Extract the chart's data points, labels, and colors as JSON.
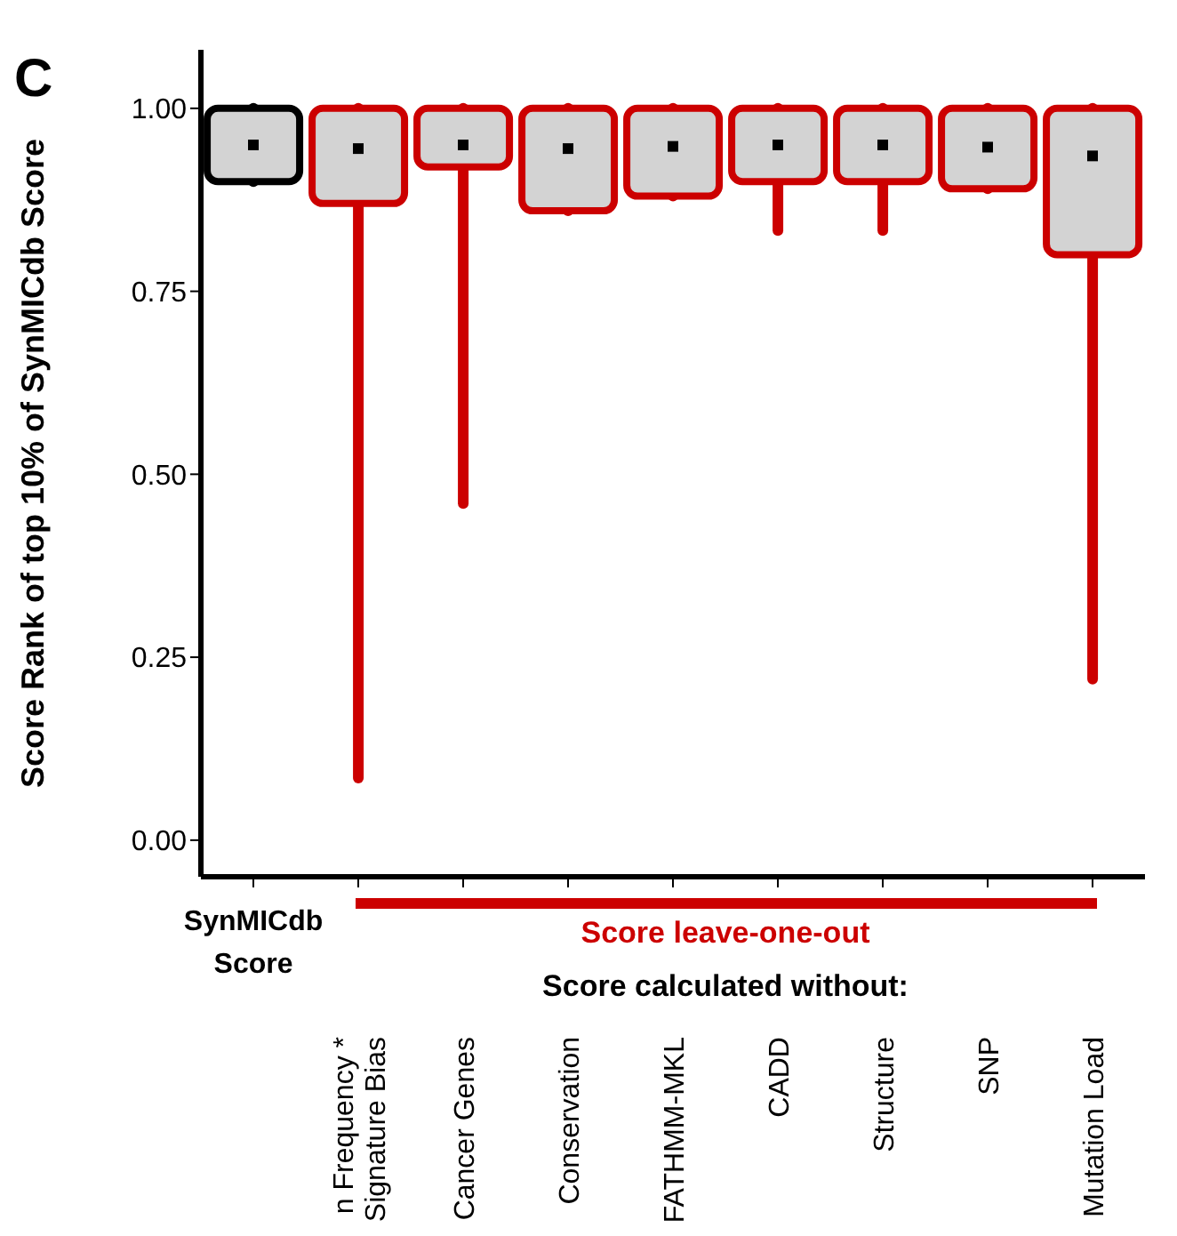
{
  "chart_data": {
    "type": "box",
    "ylabel": "Score Rank of top 10% of SynMICdb Score",
    "categories": [
      "SynMICdb\nScore",
      "n Frequency *\nSignature Bias",
      "Cancer Genes",
      "Conservation",
      "FATHMM-MKL",
      "CADD",
      "Structure",
      "SNP",
      "Mutation Load"
    ],
    "colors": [
      "#000000",
      "#cc0000",
      "#cc0000",
      "#cc0000",
      "#cc0000",
      "#cc0000",
      "#cc0000",
      "#cc0000",
      "#cc0000"
    ],
    "boxes": [
      {
        "low": 0.9,
        "q1": 0.9,
        "median": 0.95,
        "q3": 1.0,
        "high": 1.0
      },
      {
        "low": 0.085,
        "q1": 0.87,
        "median": 0.945,
        "q3": 1.0,
        "high": 1.0
      },
      {
        "low": 0.46,
        "q1": 0.92,
        "median": 0.95,
        "q3": 1.0,
        "high": 1.0
      },
      {
        "low": 0.86,
        "q1": 0.86,
        "median": 0.945,
        "q3": 1.0,
        "high": 1.0
      },
      {
        "low": 0.88,
        "q1": 0.88,
        "median": 0.948,
        "q3": 1.0,
        "high": 1.0
      },
      {
        "low": 0.833,
        "q1": 0.9,
        "median": 0.95,
        "q3": 1.0,
        "high": 1.0
      },
      {
        "low": 0.833,
        "q1": 0.9,
        "median": 0.95,
        "q3": 1.0,
        "high": 1.0
      },
      {
        "low": 0.89,
        "q1": 0.89,
        "median": 0.947,
        "q3": 1.0,
        "high": 1.0
      },
      {
        "low": 0.22,
        "q1": 0.8,
        "median": 0.935,
        "q3": 1.0,
        "high": 1.0
      }
    ],
    "ylim": [
      -0.05,
      1.08
    ],
    "yticks": [
      {
        "value": 0,
        "label": "0.00"
      },
      {
        "value": 0.25,
        "label": "0.25"
      },
      {
        "value": 0.5,
        "label": "0.50"
      },
      {
        "value": 0.75,
        "label": "0.75"
      },
      {
        "value": 1,
        "label": "1.00"
      }
    ],
    "annotations": [
      "C",
      "Score leave-one-out",
      "Score calculated without:"
    ]
  }
}
